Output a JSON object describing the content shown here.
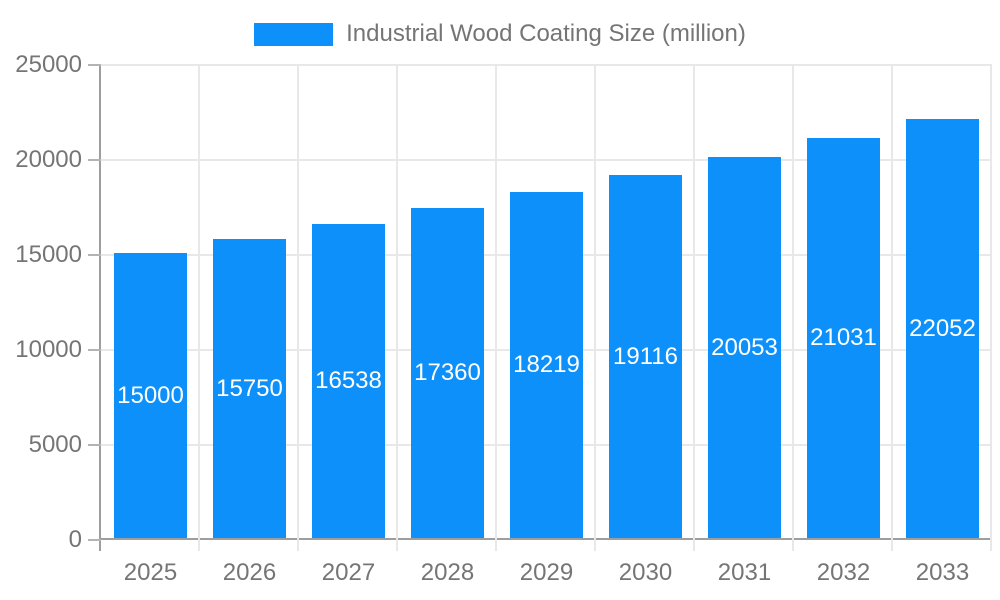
{
  "colors": {
    "bar": "#0d90fa",
    "grid": "#e8e8e8",
    "axis_line": "#9e9e9e",
    "tick": "#b3b3b3",
    "axis_text": "#757575",
    "bar_label_text": "#ffffff",
    "background": "#ffffff"
  },
  "chart_data": {
    "type": "bar",
    "title": "Industrial Wood Coating Size (million)",
    "series_name": "Industrial Wood Coating Size (million)",
    "categories": [
      "2025",
      "2026",
      "2027",
      "2028",
      "2029",
      "2030",
      "2031",
      "2032",
      "2033"
    ],
    "values": [
      15000,
      15750,
      16538,
      17360,
      18219,
      19116,
      20053,
      21031,
      22052
    ],
    "bar_labels": [
      "15000",
      "15750",
      "16538",
      "17360",
      "18219",
      "19116",
      "20053",
      "21031",
      "22052"
    ],
    "y_ticks": [
      0,
      5000,
      10000,
      15000,
      20000,
      25000
    ],
    "y_tick_labels": [
      "0",
      "5000",
      "10000",
      "15000",
      "20000",
      "25000"
    ],
    "ylim": [
      0,
      25000
    ],
    "xlabel": "",
    "ylabel": "",
    "grid": true,
    "vertical_gridlines": true,
    "legend_position": "top",
    "bar_label_position": "center-inside"
  }
}
